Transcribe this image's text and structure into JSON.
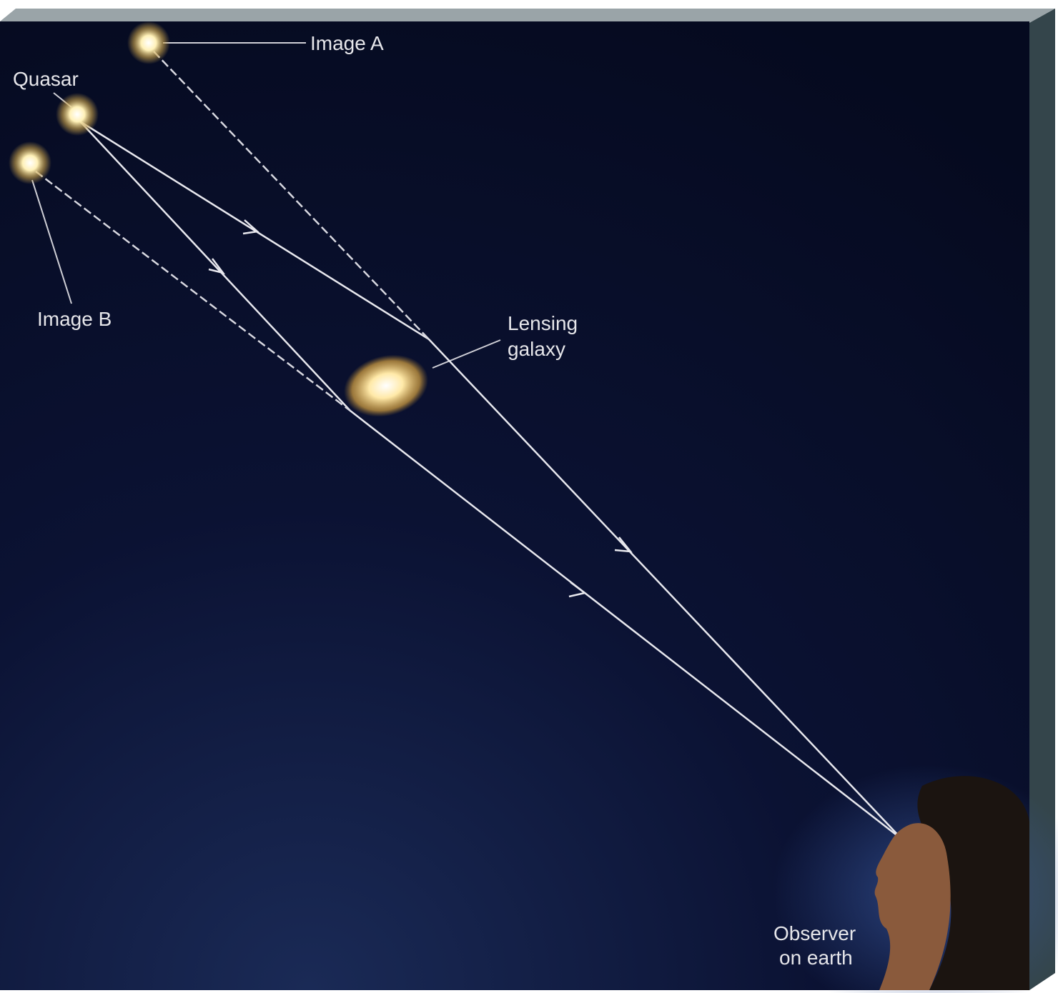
{
  "labels": {
    "image_a": "Image A",
    "quasar": "Quasar",
    "image_b": "Image B",
    "lensing_galaxy": [
      "Lensing",
      "galaxy"
    ],
    "observer": [
      "Observer",
      "on earth"
    ]
  }
}
